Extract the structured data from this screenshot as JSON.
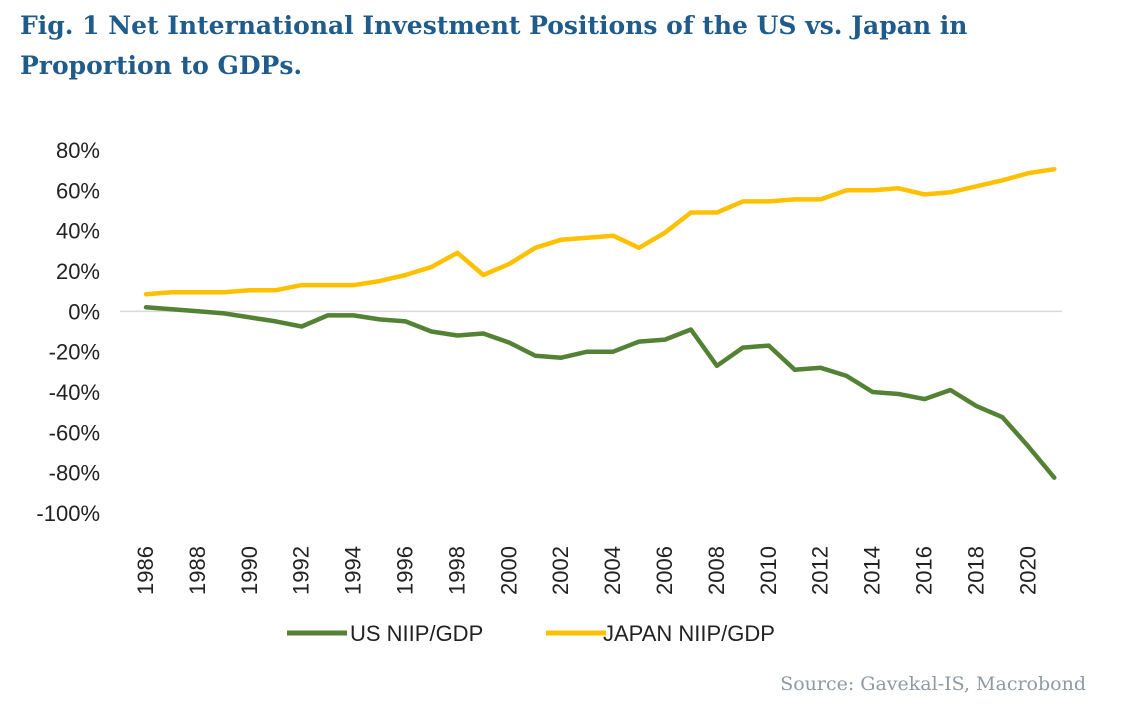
{
  "title": "Fig. 1 Net International Investment Positions of the US vs. Japan in Proportion to GDPs.",
  "source": "Source: Gavekal-IS, Macrobond",
  "chart_data": {
    "type": "line",
    "title": "Fig. 1 Net International Investment Positions of the US vs. Japan in Proportion to GDPs.",
    "xlabel": "",
    "ylabel": "",
    "x": [
      1986,
      1987,
      1988,
      1989,
      1990,
      1991,
      1992,
      1993,
      1994,
      1995,
      1996,
      1997,
      1998,
      1999,
      2000,
      2001,
      2002,
      2003,
      2004,
      2005,
      2006,
      2007,
      2008,
      2009,
      2010,
      2011,
      2012,
      2013,
      2014,
      2015,
      2016,
      2017,
      2018,
      2019,
      2020,
      2021
    ],
    "x_tick_labels": [
      "1986",
      "1988",
      "1990",
      "1992",
      "1994",
      "1996",
      "1998",
      "2000",
      "2002",
      "2004",
      "2006",
      "2008",
      "2010",
      "2012",
      "2014",
      "2016",
      "2018",
      "2020"
    ],
    "ylim": [
      -100,
      80
    ],
    "y_ticks": [
      80,
      60,
      40,
      20,
      0,
      -20,
      -40,
      -60,
      -80,
      -100
    ],
    "y_tick_labels": [
      "80%",
      "60%",
      "40%",
      "20%",
      "0%",
      "-20%",
      "-40%",
      "-60%",
      "-80%",
      "-100%"
    ],
    "grid": false,
    "zero_line": true,
    "legend_position": "bottom",
    "series": [
      {
        "name": "US NIIP/GDP",
        "color": "#548235",
        "values": [
          2,
          1,
          0,
          -1,
          -3,
          -5,
          -7.5,
          -2,
          -2,
          -4,
          -5,
          -10,
          -12,
          -11,
          -15.5,
          -22,
          -23,
          -20,
          -20,
          -15,
          -14,
          -9,
          -27,
          -18,
          -17,
          -29,
          -28,
          -32,
          -40,
          -41,
          -43.5,
          -39,
          -47,
          -52.5,
          -67,
          -82.5
        ]
      },
      {
        "name": "JAPAN NIIP/GDP",
        "color": "#ffc000",
        "values": [
          8.5,
          9.5,
          9.5,
          9.5,
          10.5,
          10.5,
          13,
          13,
          13,
          15,
          18,
          22,
          29,
          18,
          23.5,
          31.5,
          35.5,
          36.5,
          37.5,
          31.5,
          39,
          49,
          49,
          54.5,
          54.5,
          55.5,
          55.5,
          60,
          60,
          61,
          58,
          59,
          62,
          65,
          68.5,
          70.5
        ]
      }
    ]
  }
}
